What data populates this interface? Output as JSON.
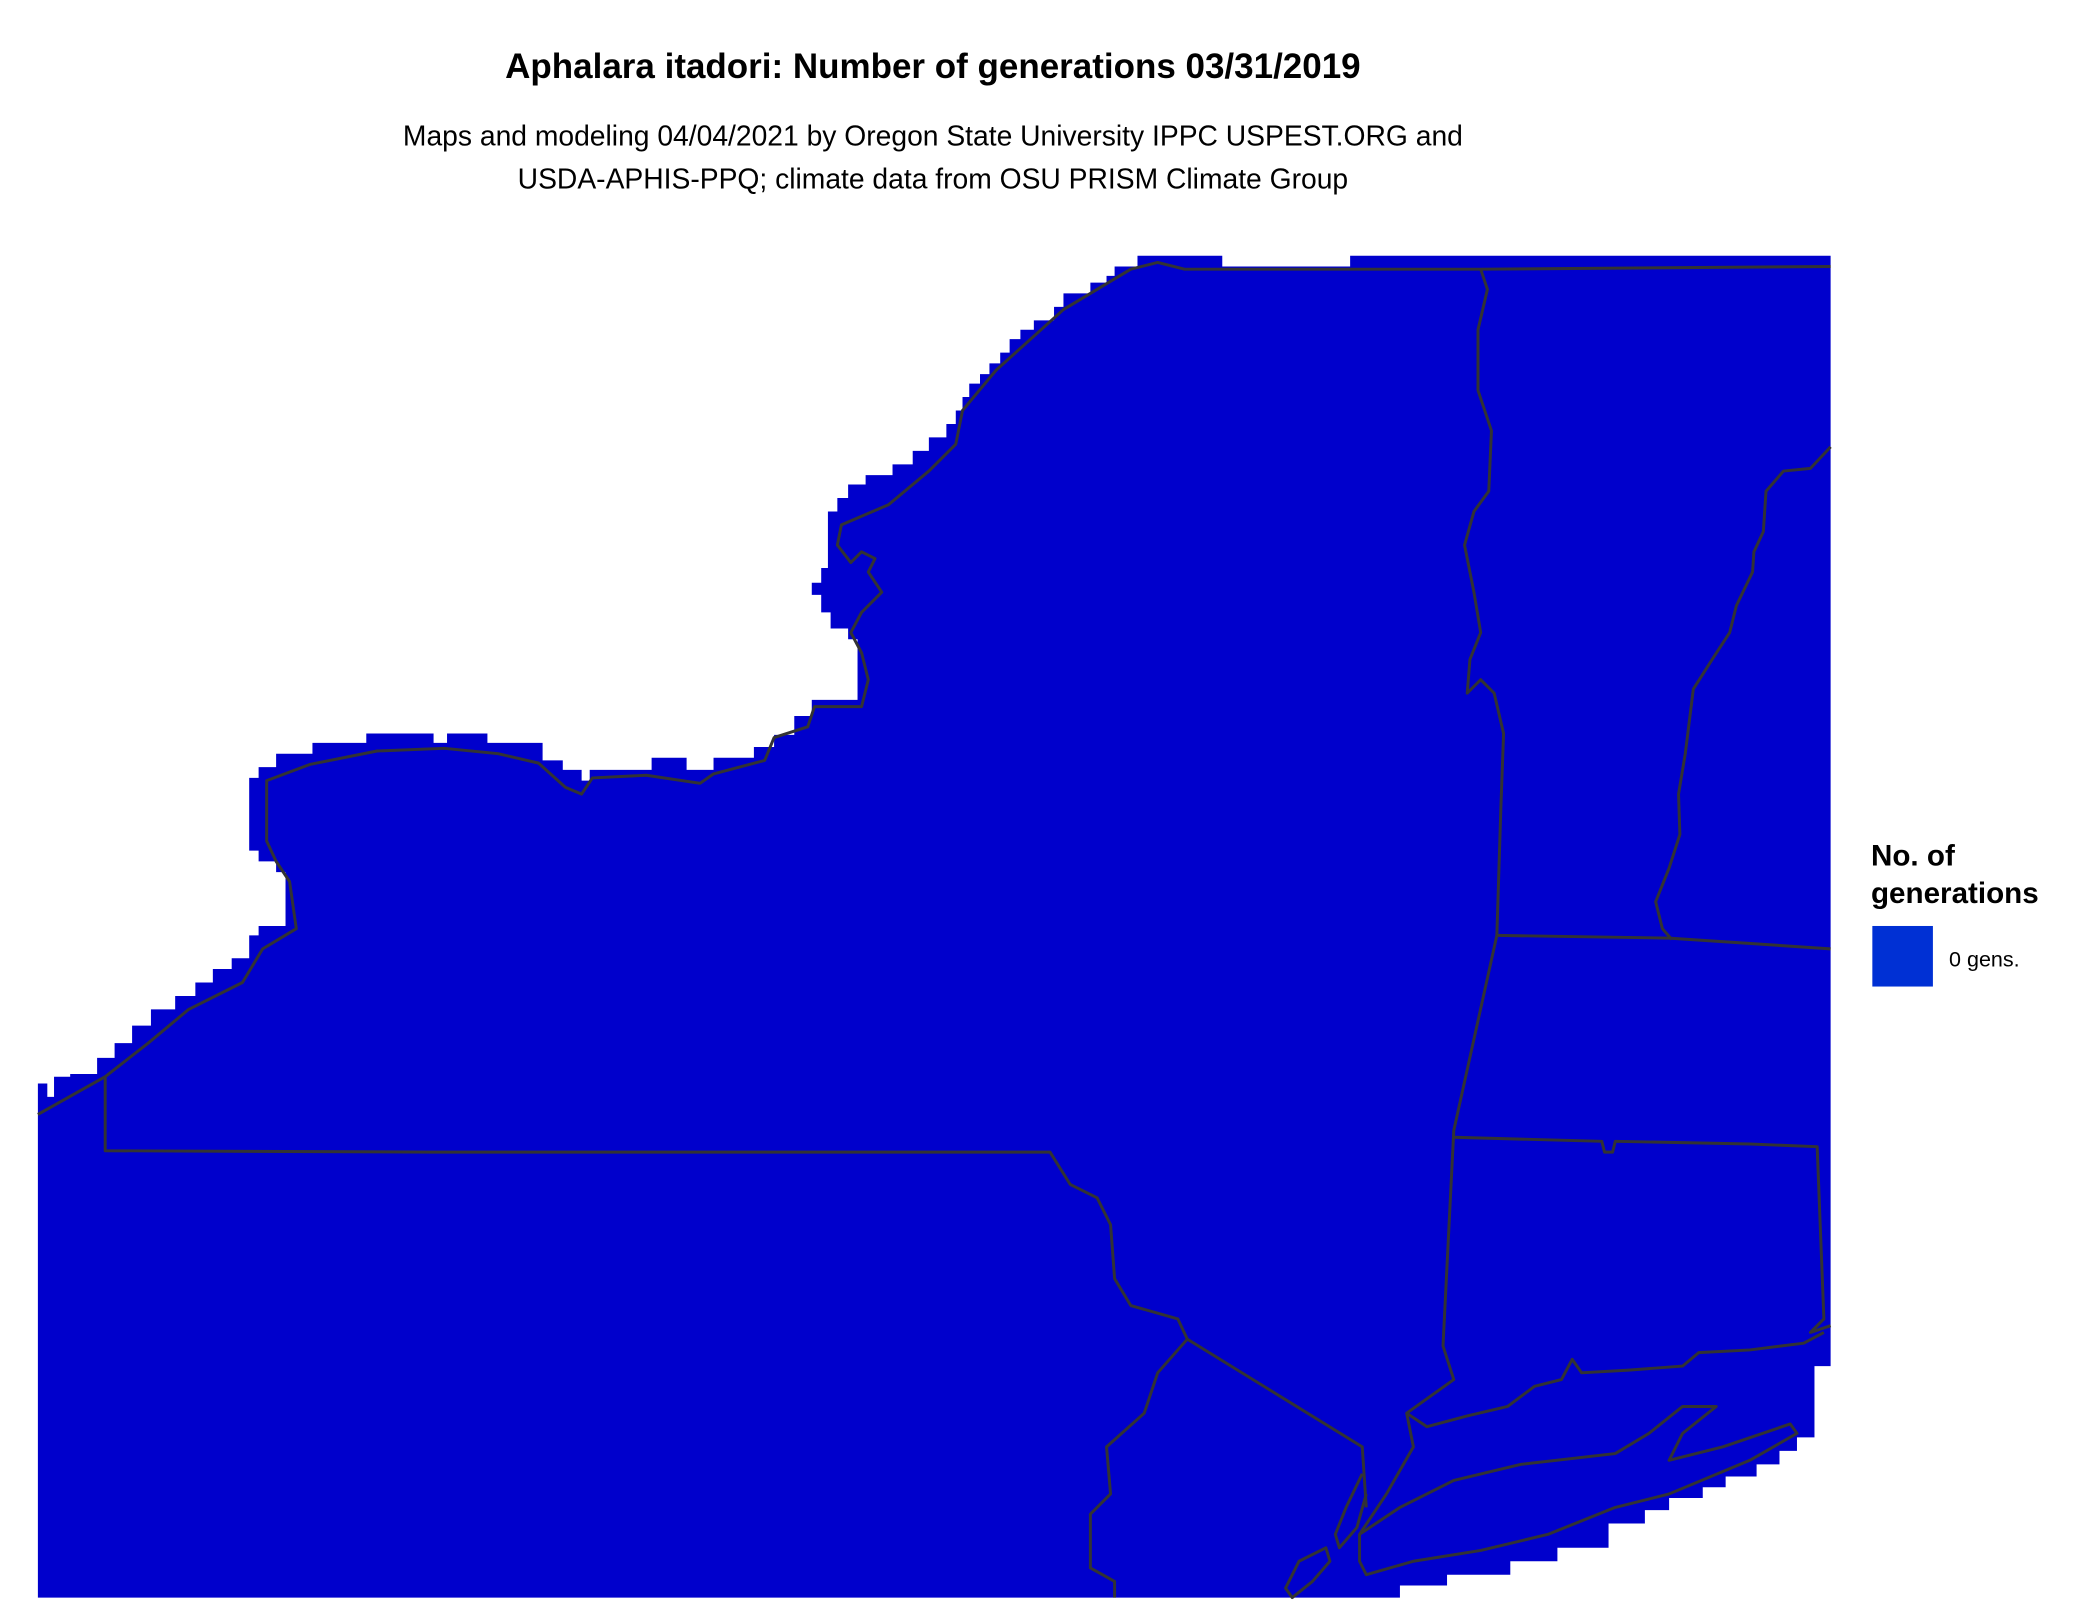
{
  "title": "Aphalara itadori: Number of generations 03/31/2019",
  "subtitle_line1": "Maps and modeling 04/04/2021 by Oregon State University IPPC USPEST.ORG and",
  "subtitle_line2": "USDA-APHIS-PPQ; climate data from OSU PRISM Climate Group",
  "legend": {
    "title_line1": "No. of",
    "title_line2": "generations",
    "items": [
      {
        "label": "0 gens.",
        "color": "#0030D4"
      }
    ]
  },
  "map": {
    "fill_color": "#0000CC",
    "border_color": "#333333",
    "category_shown": "0 gens."
  }
}
